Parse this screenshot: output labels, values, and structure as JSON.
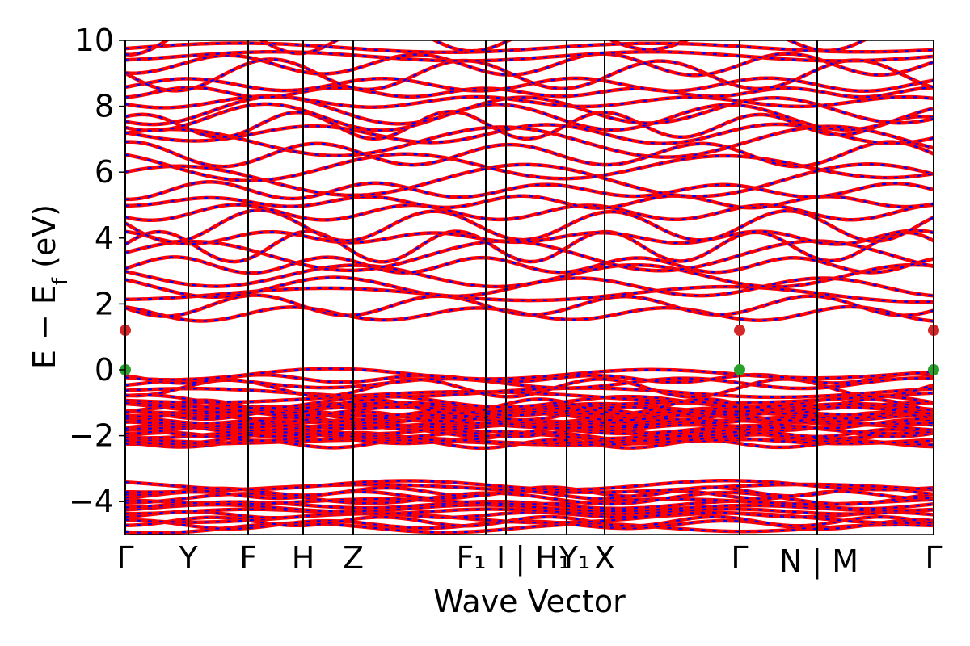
{
  "chart_data": {
    "type": "line",
    "title": "",
    "xlabel": "Wave Vector",
    "ylabel": "E − E",
    "ylabel_sub": "f",
    "ylabel_unit": " (eV)",
    "ylim": [
      -5,
      10
    ],
    "yticks": [
      -4,
      -2,
      0,
      2,
      4,
      6,
      8,
      10
    ],
    "ytick_labels": [
      "−4",
      "−2",
      "0",
      "2",
      "4",
      "6",
      "8",
      "10"
    ],
    "xlim": [
      0,
      1
    ],
    "kpoints": [
      {
        "pos": 0.0,
        "label": "Γ"
      },
      {
        "pos": 0.078,
        "label": "Y"
      },
      {
        "pos": 0.152,
        "label": "F"
      },
      {
        "pos": 0.22,
        "label": "H"
      },
      {
        "pos": 0.282,
        "label": "Z"
      },
      {
        "pos": 0.446,
        "label": "F₁ | I"
      },
      {
        "pos": 0.471,
        "label": ""
      },
      {
        "pos": 0.546,
        "label": "I₁ | H₁"
      },
      {
        "pos": 0.593,
        "label": "Y₁"
      },
      {
        "pos": 0.76,
        "label": "X"
      },
      {
        "pos": 0.856,
        "label": "Γ"
      },
      {
        "pos": 1.0,
        "label": "N | M"
      },
      {
        "pos": 1.0,
        "label": "Γ"
      }
    ],
    "tick_labels_shown": [
      "Γ",
      "Y",
      "F",
      "H",
      "Z",
      "F₁",
      "I | H₁",
      "Y₁",
      "X",
      "Γ",
      "N | M",
      "Γ"
    ],
    "series_colors": {
      "band": "#ff0000",
      "dash": "#0000ff"
    },
    "cbm_marker_color": "#d62728",
    "vbm_marker_color": "#2ca02c",
    "conduction_band_min": 1.2,
    "valence_band_max": 0.0,
    "grid": false,
    "legend": "none"
  }
}
